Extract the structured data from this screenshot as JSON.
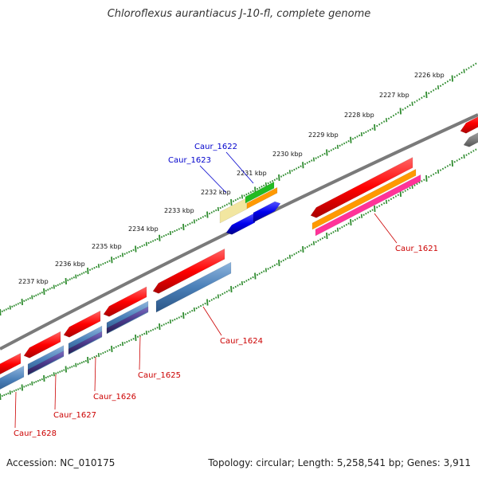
{
  "title": "Chloroflexus aurantiacus J-10-fl, complete genome",
  "footer": {
    "accession": "Accession: NC_010175",
    "summary": "Topology: circular; Length: 5,258,541 bp; Genes: 3,911"
  },
  "ticks": [
    "2226 kbp",
    "2227 kbp",
    "2228 kbp",
    "2229 kbp",
    "2230 kbp",
    "2231 kbp",
    "2232 kbp",
    "2233 kbp",
    "2234 kbp",
    "2235 kbp",
    "2236 kbp",
    "2237 kbp"
  ],
  "genes": [
    {
      "id": "Caur_1621",
      "color": "#cc0000"
    },
    {
      "id": "Caur_1622",
      "color": "#0000cc"
    },
    {
      "id": "Caur_1623",
      "color": "#0000cc"
    },
    {
      "id": "Caur_1624",
      "color": "#cc0000"
    },
    {
      "id": "Caur_1625",
      "color": "#cc0000"
    },
    {
      "id": "Caur_1626",
      "color": "#cc0000"
    },
    {
      "id": "Caur_1627",
      "color": "#cc0000"
    },
    {
      "id": "Caur_1628",
      "color": "#cc0000"
    }
  ],
  "colors": {
    "red": "#ff0000",
    "steelblue": "#4a7fb8",
    "darkviolet": "#4b3a8c",
    "blue": "#0000ee",
    "green": "#22bb22",
    "orange": "#ff9900",
    "pink": "#ff3399",
    "khaki": "#f2e6a0",
    "gray": "#888888",
    "tickgreen": "#2e8b2e"
  }
}
